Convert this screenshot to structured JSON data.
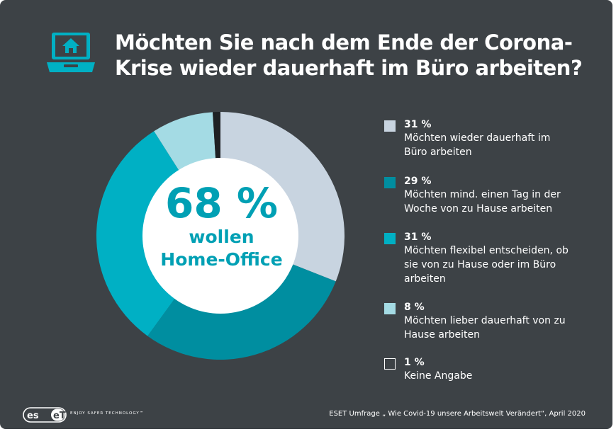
{
  "header": {
    "title_line1": "Möchten Sie nach dem Ende der Corona-",
    "title_line2": "Krise wieder dauerhaft im Büro arbeiten?",
    "icon": "laptop-home-icon"
  },
  "center": {
    "value": "68 %",
    "line1": "wollen",
    "line2": "Home-Office"
  },
  "chart_data": {
    "type": "pie",
    "variant": "donut",
    "categories": [
      "Möchten wieder dauerhaft im Büro arbeiten",
      "Möchten mind. einen Tag in der Woche von zu Hause arbeiten",
      "Möchten flexibel entscheiden, ob sie von zu Hause oder im Büro arbeiten",
      "Möchten lieber dauerhaft von zu Hause arbeiten",
      "Keine Angabe"
    ],
    "values": [
      31,
      29,
      31,
      8,
      1
    ],
    "labels": [
      "31 %",
      "29 %",
      "31 %",
      "8 %",
      "1 %"
    ],
    "colors": [
      "#c8d4e0",
      "#008ea0",
      "#00b0c4",
      "#a4dbe4",
      "#1e2124"
    ],
    "legend_placement": "right"
  },
  "legend": [
    {
      "pct": "31 %",
      "lines": [
        "Möchten wieder dauerhaft im",
        "Büro arbeiten"
      ]
    },
    {
      "pct": "29 %",
      "lines": [
        "Möchten mind. einen Tag in der",
        "Woche von zu Hause arbeiten"
      ]
    },
    {
      "pct": "31 %",
      "lines": [
        "Möchten flexibel entscheiden, ob",
        "sie von zu Hause oder im Büro",
        "arbeiten"
      ]
    },
    {
      "pct": "8 %",
      "lines": [
        "Möchten lieber dauerhaft von zu",
        "Hause arbeiten"
      ]
    },
    {
      "pct": "1 %",
      "lines": [
        "Keine Angabe"
      ]
    }
  ],
  "footer": {
    "logo": "eset",
    "tagline": "ENJOY SAFER TECHNOLOGY™",
    "source": "ESET Umfrage „ Wie Covid-19 unsere Arbeitswelt Verändert“, April 2020"
  },
  "colors": {
    "background": "#3d4246",
    "accent": "#00a0b4",
    "text": "#ffffff"
  }
}
